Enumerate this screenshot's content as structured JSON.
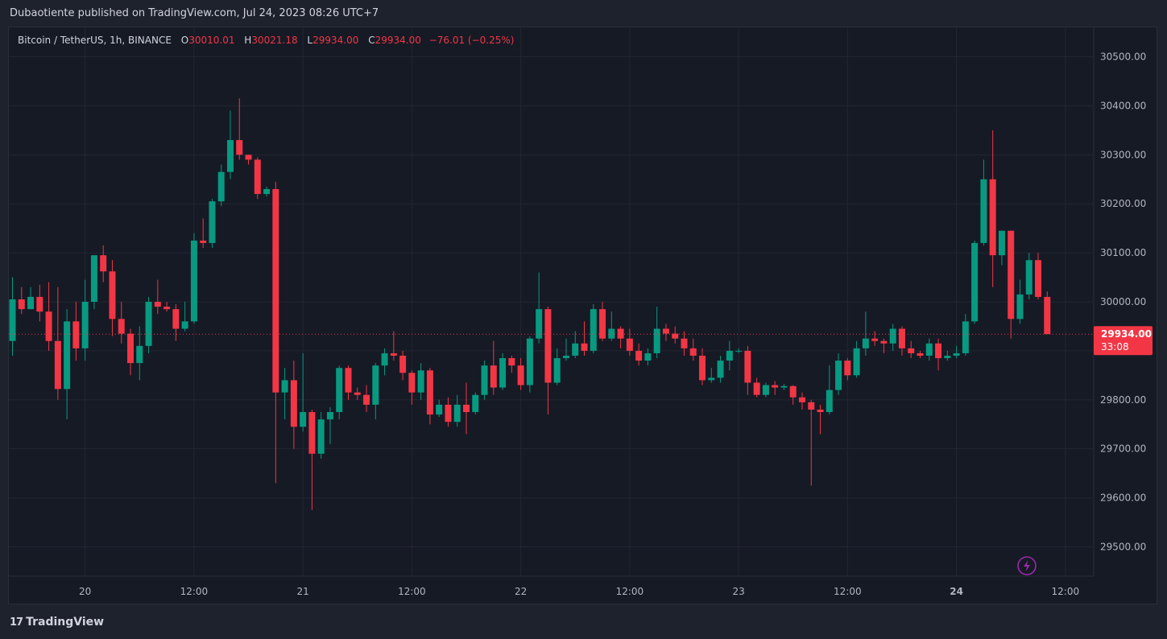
{
  "header": {
    "publisher_line": "Dubaotiente published on TradingView.com, Jul 24, 2023 08:26 UTC+7"
  },
  "legend": {
    "symbol": "Bitcoin / TetherUS, 1h, BINANCE",
    "o_label": "O",
    "o_value": "30010.01",
    "h_label": "H",
    "h_value": "30021.18",
    "l_label": "L",
    "l_value": "29934.00",
    "c_label": "C",
    "c_value": "29934.00",
    "change": "−76.01 (−0.25%)"
  },
  "footer": {
    "logo_mark": "17",
    "logo_text": "TradingView"
  },
  "colors": {
    "up": "#089981",
    "down": "#f23645",
    "grid": "#232632",
    "background": "#161a25",
    "axis_text": "#b2b5be"
  },
  "icons": {
    "bottom_right": "lightning-icon"
  },
  "chart_data": {
    "type": "candlestick",
    "ylim": [
      29440,
      30560
    ],
    "y_ticks": [
      "30500.00",
      "30400.00",
      "30300.00",
      "30200.00",
      "30100.00",
      "30000.00",
      "29900.00",
      "29800.00",
      "29700.00",
      "29600.00",
      "29500.00"
    ],
    "x_ticks": [
      {
        "label": "20",
        "index": 8,
        "bold": false
      },
      {
        "label": "12:00",
        "index": 20,
        "bold": false
      },
      {
        "label": "21",
        "index": 32,
        "bold": false
      },
      {
        "label": "12:00",
        "index": 44,
        "bold": false
      },
      {
        "label": "22",
        "index": 56,
        "bold": false
      },
      {
        "label": "12:00",
        "index": 68,
        "bold": false
      },
      {
        "label": "23",
        "index": 80,
        "bold": false
      },
      {
        "label": "12:00",
        "index": 92,
        "bold": false
      },
      {
        "label": "24",
        "index": 104,
        "bold": true
      },
      {
        "label": "12:00",
        "index": 116,
        "bold": false
      }
    ],
    "last_price_label": "29934.00",
    "countdown_label": "33:08",
    "last_price": 29934.0,
    "candles": [
      [
        29920,
        30005,
        29890,
        30050
      ],
      [
        30005,
        29985,
        29975,
        30030
      ],
      [
        29985,
        30010,
        29985,
        30030
      ],
      [
        30010,
        29980,
        29960,
        30035
      ],
      [
        29980,
        29920,
        29900,
        30040
      ],
      [
        29920,
        29822,
        29800,
        30030
      ],
      [
        29822,
        29960,
        29760,
        29985
      ],
      [
        29960,
        29905,
        29880,
        30000
      ],
      [
        29905,
        30000,
        29880,
        30045
      ],
      [
        30000,
        30095,
        29985,
        30095
      ],
      [
        30095,
        30062,
        30040,
        30115
      ],
      [
        30062,
        29965,
        29930,
        30085
      ],
      [
        29965,
        29935,
        29915,
        30000
      ],
      [
        29935,
        29875,
        29850,
        29945
      ],
      [
        29875,
        29910,
        29840,
        29950
      ],
      [
        29910,
        30000,
        29895,
        30010
      ],
      [
        30000,
        29990,
        29975,
        30045
      ],
      [
        29990,
        29985,
        29980,
        30000
      ],
      [
        29985,
        29945,
        29920,
        29995
      ],
      [
        29945,
        29960,
        29940,
        30000
      ],
      [
        29960,
        30125,
        29955,
        30140
      ],
      [
        30125,
        30120,
        30110,
        30170
      ],
      [
        30120,
        30205,
        30110,
        30210
      ],
      [
        30205,
        30265,
        30195,
        30280
      ],
      [
        30265,
        30330,
        30250,
        30390
      ],
      [
        30330,
        30300,
        30290,
        30415
      ],
      [
        30300,
        30290,
        30280,
        30300
      ],
      [
        30290,
        30220,
        30210,
        30295
      ],
      [
        30220,
        30230,
        30215,
        30235
      ],
      [
        30230,
        29815,
        29630,
        30245
      ],
      [
        29815,
        29840,
        29760,
        29865
      ],
      [
        29840,
        29745,
        29700,
        29880
      ],
      [
        29745,
        29775,
        29735,
        29895
      ],
      [
        29775,
        29690,
        29575,
        29780
      ],
      [
        29690,
        29760,
        29680,
        29775
      ],
      [
        29760,
        29775,
        29710,
        29785
      ],
      [
        29775,
        29865,
        29760,
        29870
      ],
      [
        29865,
        29815,
        29800,
        29870
      ],
      [
        29815,
        29810,
        29800,
        29825
      ],
      [
        29810,
        29790,
        29775,
        29830
      ],
      [
        29790,
        29870,
        29760,
        29875
      ],
      [
        29870,
        29895,
        29850,
        29905
      ],
      [
        29895,
        29890,
        29880,
        29940
      ],
      [
        29890,
        29855,
        29840,
        29900
      ],
      [
        29855,
        29815,
        29790,
        29860
      ],
      [
        29815,
        29860,
        29800,
        29875
      ],
      [
        29860,
        29770,
        29750,
        29865
      ],
      [
        29770,
        29790,
        29765,
        29800
      ],
      [
        29790,
        29755,
        29745,
        29805
      ],
      [
        29755,
        29790,
        29745,
        29810
      ],
      [
        29790,
        29775,
        29730,
        29835
      ],
      [
        29775,
        29810,
        29770,
        29815
      ],
      [
        29810,
        29870,
        29800,
        29880
      ],
      [
        29870,
        29825,
        29810,
        29920
      ],
      [
        29825,
        29885,
        29820,
        29895
      ],
      [
        29885,
        29870,
        29855,
        29890
      ],
      [
        29870,
        29830,
        29820,
        29885
      ],
      [
        29830,
        29925,
        29815,
        29930
      ],
      [
        29925,
        29985,
        29915,
        30060
      ],
      [
        29985,
        29835,
        29770,
        29990
      ],
      [
        29835,
        29885,
        29830,
        29905
      ],
      [
        29885,
        29890,
        29880,
        29925
      ],
      [
        29890,
        29915,
        29885,
        29940
      ],
      [
        29915,
        29900,
        29890,
        29960
      ],
      [
        29900,
        29985,
        29895,
        29995
      ],
      [
        29985,
        29925,
        29920,
        30000
      ],
      [
        29925,
        29945,
        29920,
        29980
      ],
      [
        29945,
        29925,
        29905,
        29950
      ],
      [
        29925,
        29900,
        29890,
        29945
      ],
      [
        29900,
        29880,
        29870,
        29915
      ],
      [
        29880,
        29895,
        29870,
        29905
      ],
      [
        29895,
        29945,
        29885,
        29990
      ],
      [
        29945,
        29935,
        29920,
        29955
      ],
      [
        29935,
        29925,
        29915,
        29950
      ],
      [
        29925,
        29905,
        29890,
        29940
      ],
      [
        29905,
        29890,
        29880,
        29925
      ],
      [
        29890,
        29840,
        29830,
        29905
      ],
      [
        29840,
        29845,
        29835,
        29865
      ],
      [
        29845,
        29880,
        29835,
        29890
      ],
      [
        29880,
        29900,
        29860,
        29920
      ],
      [
        29900,
        29900,
        29895,
        29905
      ],
      [
        29900,
        29835,
        29810,
        29910
      ],
      [
        29835,
        29810,
        29805,
        29845
      ],
      [
        29810,
        29830,
        29805,
        29835
      ],
      [
        29830,
        29825,
        29810,
        29838
      ],
      [
        29825,
        29828,
        29820,
        29832
      ],
      [
        29828,
        29805,
        29790,
        29830
      ],
      [
        29805,
        29795,
        29780,
        29815
      ],
      [
        29795,
        29780,
        29625,
        29800
      ],
      [
        29780,
        29775,
        29730,
        29790
      ],
      [
        29775,
        29820,
        29770,
        29870
      ],
      [
        29820,
        29880,
        29810,
        29895
      ],
      [
        29880,
        29850,
        29840,
        29885
      ],
      [
        29850,
        29905,
        29845,
        29920
      ],
      [
        29905,
        29925,
        29890,
        29980
      ],
      [
        29925,
        29920,
        29910,
        29940
      ],
      [
        29920,
        29915,
        29895,
        29925
      ],
      [
        29915,
        29945,
        29900,
        29955
      ],
      [
        29945,
        29905,
        29890,
        29950
      ],
      [
        29905,
        29895,
        29885,
        29920
      ],
      [
        29895,
        29890,
        29885,
        29900
      ],
      [
        29890,
        29915,
        29880,
        29925
      ],
      [
        29915,
        29885,
        29860,
        29925
      ],
      [
        29885,
        29890,
        29880,
        29900
      ],
      [
        29890,
        29895,
        29885,
        29910
      ],
      [
        29895,
        29960,
        29890,
        29975
      ],
      [
        29960,
        30120,
        29955,
        30125
      ],
      [
        30120,
        30250,
        30115,
        30290
      ],
      [
        30250,
        30095,
        30030,
        30350
      ],
      [
        30095,
        30145,
        30075,
        30145
      ],
      [
        30145,
        29965,
        29925,
        30145
      ],
      [
        29965,
        30015,
        29955,
        30045
      ],
      [
        30015,
        30085,
        30005,
        30100
      ],
      [
        30085,
        30010,
        30005,
        30100
      ],
      [
        30010,
        29934,
        29934,
        30021
      ]
    ]
  }
}
